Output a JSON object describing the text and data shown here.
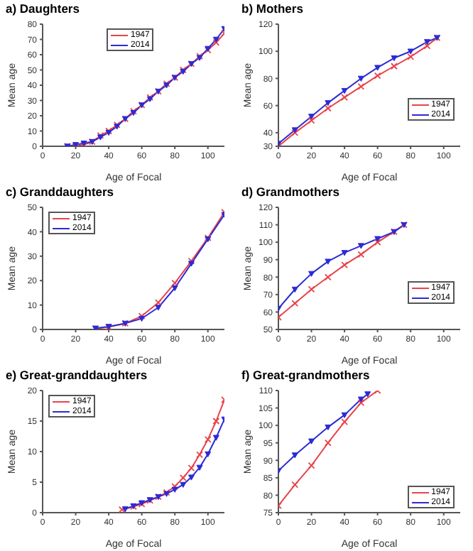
{
  "chart_data": [
    {
      "type": "line",
      "title": "a) Daughters",
      "xlabel": "Age of Focal",
      "ylabel": "Mean age",
      "xlim": [
        0,
        110
      ],
      "xticks": [
        0,
        20,
        40,
        60,
        80,
        100
      ],
      "ylim": [
        0,
        80
      ],
      "yticks": [
        0,
        10,
        20,
        30,
        40,
        50,
        60,
        70,
        80
      ],
      "grid": false,
      "legend": "top",
      "series": [
        {
          "name": "1947",
          "color": "#e8434a",
          "marker": "cross",
          "x": [
            15,
            20,
            25,
            30,
            35,
            40,
            45,
            50,
            55,
            60,
            65,
            70,
            75,
            80,
            85,
            90,
            95,
            100,
            105,
            110
          ],
          "values": [
            0,
            0,
            1,
            3,
            7,
            10,
            14,
            18,
            23,
            27,
            32,
            36,
            41,
            45,
            50,
            54,
            59,
            63,
            68,
            74
          ]
        },
        {
          "name": "2014",
          "color": "#2b2bd6",
          "marker": "triangle",
          "x": [
            15,
            20,
            25,
            30,
            35,
            40,
            45,
            50,
            55,
            60,
            65,
            70,
            75,
            80,
            85,
            90,
            95,
            100,
            105,
            110
          ],
          "values": [
            0,
            1,
            2,
            3,
            6,
            9,
            13,
            18,
            22,
            27,
            31,
            36,
            40,
            45,
            49,
            54,
            58,
            64,
            70,
            77
          ]
        }
      ]
    },
    {
      "type": "line",
      "title": "b) Mothers",
      "xlabel": "Age of Focal",
      "ylabel": "Mean age",
      "xlim": [
        0,
        110
      ],
      "xticks": [
        0,
        20,
        40,
        60,
        80,
        100
      ],
      "ylim": [
        30,
        120
      ],
      "yticks": [
        30,
        40,
        60,
        80,
        100,
        120
      ],
      "grid": false,
      "legend": "right",
      "series": [
        {
          "name": "1947",
          "color": "#e8434a",
          "marker": "cross",
          "x": [
            0,
            10,
            20,
            30,
            40,
            50,
            60,
            70,
            80,
            90,
            96
          ],
          "values": [
            30,
            40,
            49,
            58,
            66,
            74,
            82,
            89,
            96,
            104,
            110
          ]
        },
        {
          "name": "2014",
          "color": "#2b2bd6",
          "marker": "triangle",
          "x": [
            0,
            10,
            20,
            30,
            40,
            50,
            60,
            70,
            80,
            90,
            96
          ],
          "values": [
            32,
            42,
            52,
            62,
            71,
            80,
            88,
            95,
            100,
            107,
            110
          ]
        }
      ]
    },
    {
      "type": "line",
      "title": "c) Granddaughters",
      "xlabel": "Age of Focal",
      "ylabel": "Mean age",
      "xlim": [
        0,
        110
      ],
      "xticks": [
        0,
        20,
        40,
        60,
        80,
        100
      ],
      "ylim": [
        0,
        50
      ],
      "yticks": [
        0,
        10,
        20,
        30,
        40,
        50
      ],
      "grid": false,
      "legend": "top left",
      "series": [
        {
          "name": "1947",
          "color": "#e8434a",
          "marker": "cross",
          "x": [
            32,
            40,
            50,
            60,
            70,
            80,
            90,
            100,
            110
          ],
          "values": [
            0.3,
            1,
            2.5,
            5.5,
            11,
            19,
            28,
            37.5,
            48
          ]
        },
        {
          "name": "2014",
          "color": "#2b2bd6",
          "marker": "triangle",
          "x": [
            32,
            40,
            50,
            60,
            70,
            80,
            90,
            100,
            110
          ],
          "values": [
            0.5,
            1.2,
            2.5,
            4.5,
            9,
            17,
            27,
            37,
            47
          ]
        }
      ]
    },
    {
      "type": "line",
      "title": "d) Grandmothers",
      "xlabel": "Age of Focal",
      "ylabel": "Mean age",
      "xlim": [
        0,
        110
      ],
      "xticks": [
        0,
        20,
        40,
        60,
        80,
        100
      ],
      "ylim": [
        50,
        120
      ],
      "yticks": [
        50,
        60,
        70,
        80,
        90,
        100,
        110,
        120
      ],
      "grid": false,
      "legend": "right",
      "series": [
        {
          "name": "1947",
          "color": "#e8434a",
          "marker": "cross",
          "x": [
            0,
            10,
            20,
            30,
            40,
            50,
            60,
            70,
            76
          ],
          "values": [
            57,
            65,
            73,
            80,
            87,
            93,
            100,
            106,
            110
          ]
        },
        {
          "name": "2014",
          "color": "#2b2bd6",
          "marker": "triangle",
          "x": [
            0,
            10,
            20,
            30,
            40,
            50,
            60,
            70,
            76
          ],
          "values": [
            62,
            73,
            82,
            89,
            94,
            98,
            102,
            106,
            110
          ]
        }
      ]
    },
    {
      "type": "line",
      "title": "e) Great-granddaughters",
      "xlabel": "Age of Focal",
      "ylabel": "Mean age",
      "xlim": [
        0,
        110
      ],
      "xticks": [
        0,
        20,
        40,
        60,
        80,
        100
      ],
      "ylim": [
        0,
        20
      ],
      "yticks": [
        0,
        5,
        10,
        15,
        20
      ],
      "grid": false,
      "legend": "top left",
      "series": [
        {
          "name": "1947",
          "color": "#e8434a",
          "marker": "cross",
          "x": [
            48,
            55,
            60,
            65,
            70,
            75,
            80,
            85,
            90,
            95,
            100,
            105,
            110
          ],
          "values": [
            0.5,
            1,
            1.4,
            2,
            2.6,
            3.3,
            4.3,
            5.7,
            7.3,
            9.5,
            12,
            15,
            18.5
          ]
        },
        {
          "name": "2014",
          "color": "#2b2bd6",
          "marker": "triangle",
          "x": [
            50,
            55,
            60,
            65,
            70,
            75,
            80,
            85,
            90,
            95,
            100,
            105,
            110
          ],
          "values": [
            0.6,
            1.1,
            1.6,
            2.1,
            2.6,
            3.1,
            3.8,
            4.6,
            5.8,
            7.4,
            9.6,
            12.3,
            15.3
          ]
        }
      ]
    },
    {
      "type": "line",
      "title": "f) Great-grandmothers",
      "xlabel": "Age of Focal",
      "ylabel": "Mean age",
      "xlim": [
        0,
        110
      ],
      "xticks": [
        0,
        20,
        40,
        60,
        80,
        100
      ],
      "ylim": [
        75,
        110
      ],
      "yticks": [
        75,
        80,
        85,
        90,
        95,
        100,
        105,
        110
      ],
      "grid": false,
      "legend": "bottom right",
      "series": [
        {
          "name": "1947",
          "color": "#e8434a",
          "marker": "cross",
          "x": [
            0,
            10,
            20,
            30,
            40,
            50,
            60
          ],
          "values": [
            77,
            83,
            88.5,
            95,
            101,
            106.5,
            110
          ]
        },
        {
          "name": "2014",
          "color": "#2b2bd6",
          "marker": "triangle",
          "x": [
            0,
            10,
            20,
            30,
            40,
            50,
            54
          ],
          "values": [
            87,
            91.5,
            95.5,
            99.5,
            103,
            107.5,
            109
          ]
        }
      ]
    }
  ]
}
